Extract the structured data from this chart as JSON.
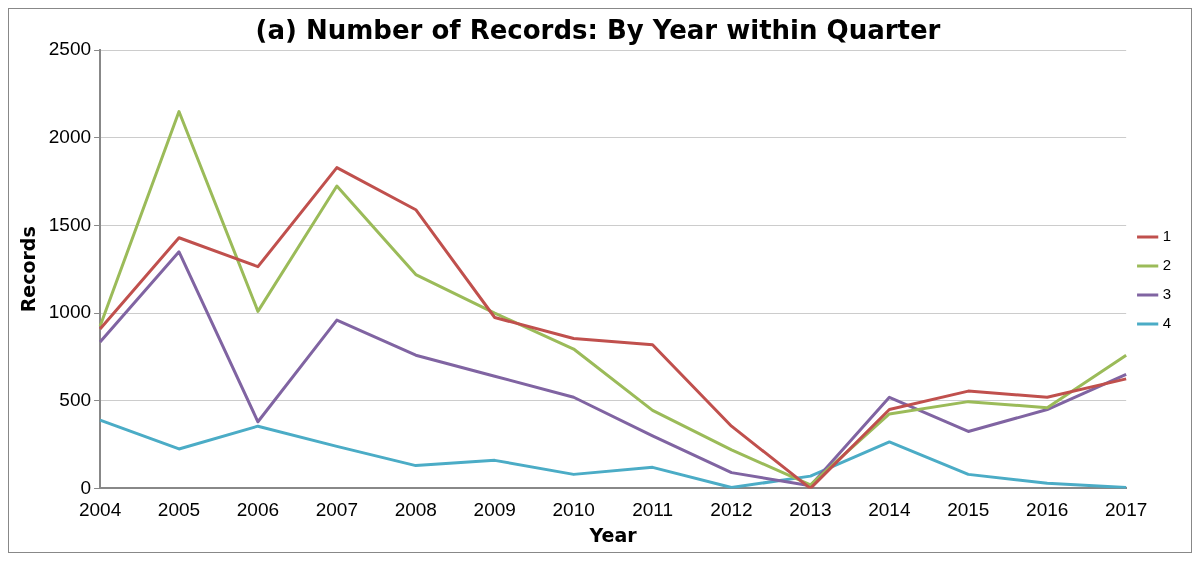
{
  "chart_data": {
    "type": "line",
    "title": "(a) Number of Records: By Year within Quarter",
    "xlabel": "Year",
    "ylabel": "Records",
    "categories": [
      "2004",
      "2005",
      "2006",
      "2007",
      "2008",
      "2009",
      "2010",
      "2011",
      "2012",
      "2013",
      "2014",
      "2015",
      "2016",
      "2017"
    ],
    "series": [
      {
        "name": "1",
        "color": "#c0504d",
        "values": [
          910,
          1430,
          1265,
          1830,
          1590,
          975,
          855,
          820,
          355,
          0,
          450,
          555,
          520,
          625
        ]
      },
      {
        "name": "2",
        "color": "#9bbb59",
        "values": [
          925,
          2150,
          1010,
          1725,
          1220,
          1000,
          795,
          445,
          220,
          20,
          425,
          495,
          460,
          760
        ]
      },
      {
        "name": "3",
        "color": "#8064a2",
        "values": [
          835,
          1350,
          380,
          960,
          760,
          640,
          520,
          300,
          90,
          15,
          520,
          325,
          450,
          650
        ]
      },
      {
        "name": "4",
        "color": "#4bacc6",
        "values": [
          390,
          225,
          355,
          240,
          130,
          160,
          80,
          120,
          5,
          70,
          265,
          80,
          30,
          5
        ]
      }
    ],
    "ylim": [
      0,
      2500
    ],
    "yticks": [
      0,
      500,
      1000,
      1500,
      2000,
      2500
    ],
    "grid": "y",
    "legend": "right",
    "marker": "none",
    "line_style": "solid"
  }
}
